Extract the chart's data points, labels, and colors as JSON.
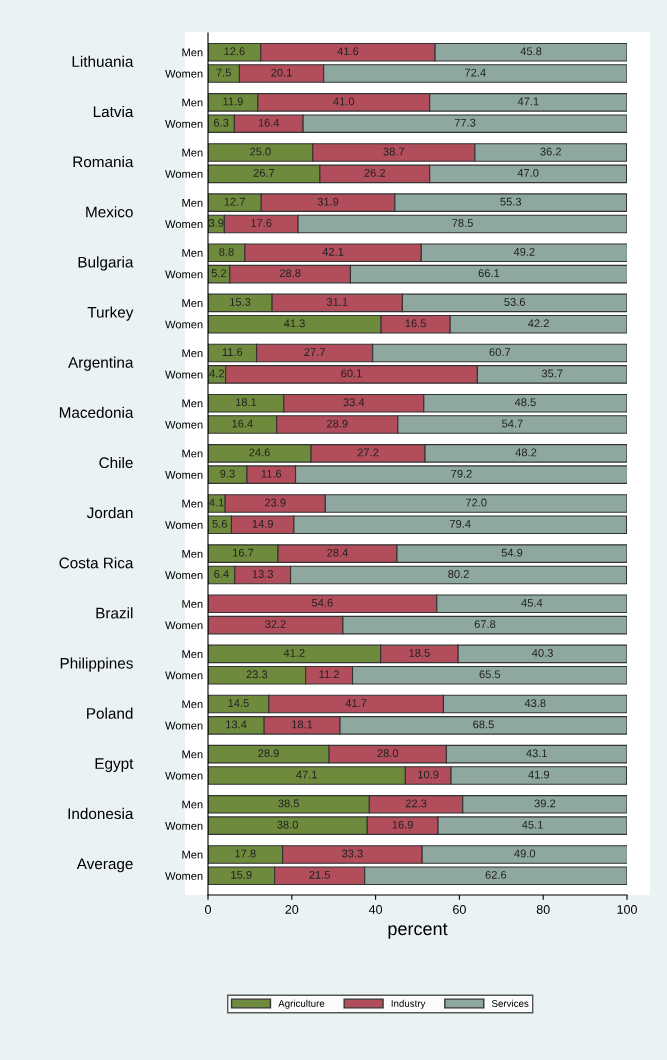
{
  "chart_data": {
    "type": "bar",
    "orientation": "horizontal",
    "stacked": true,
    "xlabel": "percent",
    "categories": [
      "Men",
      "Women",
      "Men",
      "Women",
      "Men",
      "Women",
      "Men",
      "Women",
      "Men",
      "Women",
      "Men",
      "Women",
      "Men",
      "Women",
      "Men",
      "Women",
      "Men",
      "Women",
      "Men",
      "Women",
      "Men",
      "Women",
      "Men",
      "Women",
      "Men",
      "Women",
      "Men",
      "Women",
      "Men",
      "Women",
      "Men",
      "Women",
      "Men",
      "Women"
    ],
    "annotations": [
      "Lithuania",
      "Latvia",
      "Romania",
      "Mexico",
      "Bulgaria",
      "Turkey",
      "Argentina",
      "Macedonia",
      "Chile",
      "Jordan",
      "Costa Rica",
      "Brazil",
      "Philippines",
      "Poland",
      "Egypt",
      "Indonesia",
      "Average"
    ],
    "series": [
      {
        "name": "Agriculture",
        "color": "#6e8b3d",
        "values": [
          12.6,
          7.5,
          11.9,
          6.3,
          25.0,
          26.7,
          12.7,
          3.9,
          8.8,
          5.2,
          15.3,
          41.3,
          11.6,
          4.2,
          18.1,
          16.4,
          24.6,
          9.3,
          4.1,
          5.6,
          16.7,
          6.4,
          0,
          0,
          41.2,
          23.3,
          14.5,
          13.4,
          28.9,
          47.1,
          38.5,
          38.0,
          17.8,
          15.9
        ],
        "value_labels": [
          "12.6",
          "7.5",
          "11.9",
          "6.3",
          "25.0",
          "26.7",
          "12.7",
          "3.9",
          "8.8",
          "5.2",
          "15.3",
          "41.3",
          "11.6",
          "4.2",
          "18.1",
          "16.4",
          "24.6",
          "9.3",
          "4.1",
          "5.6",
          "16.7",
          "6.4",
          null,
          null,
          "41.2",
          "23.3",
          "14.5",
          "13.4",
          "28.9",
          "47.1",
          "38.5",
          "38.0",
          "17.8",
          "15.9"
        ]
      },
      {
        "name": "Industry",
        "color": "#b24d5c",
        "values": [
          41.6,
          20.1,
          41.0,
          16.4,
          38.7,
          26.2,
          31.9,
          17.6,
          42.1,
          28.8,
          31.1,
          16.5,
          27.7,
          60.1,
          33.4,
          28.9,
          27.2,
          11.6,
          23.9,
          14.9,
          28.4,
          13.3,
          54.6,
          32.2,
          18.5,
          11.2,
          41.7,
          18.1,
          28.0,
          10.9,
          22.3,
          16.9,
          33.3,
          21.5
        ],
        "value_labels": [
          "41.6",
          "20.1",
          "41.0",
          "16.4",
          "38.7",
          "26.2",
          "31.9",
          "17.6",
          "42.1",
          "28.8",
          "31.1",
          "16.5",
          "27.7",
          "60.1",
          "33.4",
          "28.9",
          "27.2",
          "11.6",
          "23.9",
          "14.9",
          "28.4",
          "13.3",
          "54.6",
          "32.2",
          "18.5",
          "11.2",
          "41.7",
          "18.1",
          "28.0",
          "10.9",
          "22.3",
          "16.9",
          "33.3",
          "21.5"
        ]
      },
      {
        "name": "Services",
        "color": "#8fa89f",
        "values": [
          45.8,
          72.4,
          47.1,
          77.3,
          36.2,
          47.0,
          55.3,
          78.5,
          49.2,
          66.1,
          53.6,
          42.2,
          60.7,
          35.7,
          48.5,
          54.7,
          48.2,
          79.2,
          72.0,
          79.4,
          54.9,
          80.2,
          45.4,
          67.8,
          40.3,
          65.5,
          43.8,
          68.5,
          43.1,
          41.9,
          39.2,
          45.1,
          49.0,
          62.6
        ],
        "value_labels": [
          "45.8",
          "72.4",
          "47.1",
          "77.3",
          "36.2",
          "47.0",
          "55.3",
          "78.5",
          "49.2",
          "66.1",
          "53.6",
          "42.2",
          "60.7",
          "35.7",
          "48.5",
          "54.7",
          "48.2",
          "79.2",
          "72.0",
          "79.4",
          "54.9",
          "80.2",
          "45.4",
          "67.8",
          "40.3",
          "65.5",
          "43.8",
          "68.5",
          "43.1",
          "41.9",
          "39.2",
          "45.1",
          "49.0",
          "62.6"
        ]
      }
    ],
    "xlim": [
      0,
      100
    ],
    "xticks": [
      0,
      20,
      40,
      60,
      80,
      100
    ],
    "grid": false,
    "legend": "bottom"
  }
}
